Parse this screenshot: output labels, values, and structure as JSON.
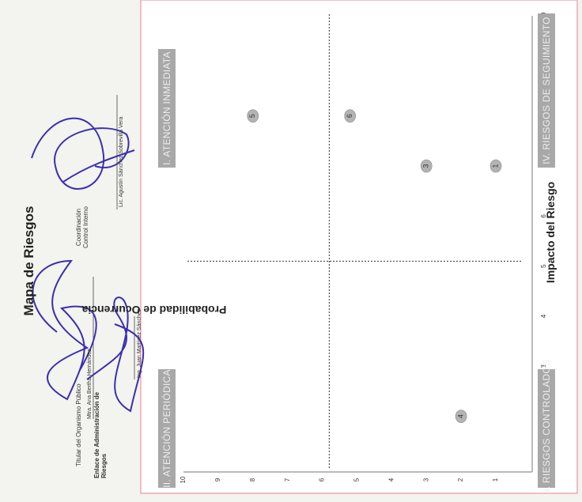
{
  "chart_data": {
    "type": "scatter",
    "title": "Mapa de Riesgos",
    "xlabel": "Impacto del Riesgo",
    "ylabel": "Probabilidad de Ocurrencia",
    "xlim": [
      1,
      10
    ],
    "ylim": [
      1,
      10
    ],
    "x_ticks": [
      "1",
      "2",
      "3",
      "4",
      "5",
      "6",
      "7",
      "8",
      "9",
      "10"
    ],
    "y_ticks": [
      "1",
      "2",
      "3",
      "4",
      "5",
      "6",
      "7",
      "8",
      "9",
      "10"
    ],
    "divider_x": 5.1,
    "divider_y": 5.8,
    "grid": false,
    "points": [
      {
        "label": "1",
        "x": 7,
        "y": 1.0
      },
      {
        "label": "3",
        "x": 7,
        "y": 3.0
      },
      {
        "label": "4",
        "x": 2,
        "y": 2.0
      },
      {
        "label": "5",
        "x": 8,
        "y": 8.0
      },
      {
        "label": "6",
        "x": 8,
        "y": 5.2
      }
    ],
    "quadrants": [
      {
        "name": "I. ATENCIÓN INMEDIATA"
      },
      {
        "name": "II. ATENCIÓN PERIÓDICA"
      },
      {
        "name": "III. RIESGOS CONTROLADOS"
      },
      {
        "name": "IV. RIESGOS DE SEGUIMIENTO"
      }
    ],
    "colors": {
      "marker": "#b3b3b3",
      "quadrant_label_bg": "#a8a8a8",
      "divider": "#333333",
      "signature_ink": "#3a2fb0"
    }
  },
  "signatures": {
    "titular_label": "Titular del Organismo Público",
    "titular_name": "Mtra. Ana Bertha Hernández",
    "enlace_label": "Enlace de Administración de Riesgos",
    "enlace_name": "Ing. Juan Martínez Sánchez",
    "control_label": "Coordinación Control Interno",
    "control_name": "Lic. Agustín Sánchez Sobrevilla Vera"
  }
}
